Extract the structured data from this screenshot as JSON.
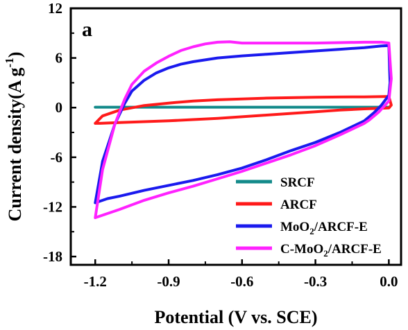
{
  "chart_data": {
    "type": "line",
    "panel_label": "a",
    "xlabel": "Potential (V vs. SCE)",
    "ylabel_main": "Current density(A g",
    "ylabel_sup": "-1",
    "ylabel_close": ")",
    "xlim": [
      -1.3,
      0.05
    ],
    "ylim": [
      -19,
      12
    ],
    "xticks": [
      -1.2,
      -0.9,
      -0.6,
      -0.3,
      0.0
    ],
    "xtick_labels": [
      "-1.2",
      "-0.9",
      "-0.6",
      "-0.3",
      "0.0"
    ],
    "yticks": [
      12,
      6,
      0,
      -6,
      -12,
      -18
    ],
    "ytick_labels": [
      "12",
      "6",
      "0",
      "-6",
      "-12",
      "-18"
    ],
    "grid": false,
    "legend_position": "bottom-right",
    "series": [
      {
        "name": "SRCF",
        "color": "#138a8a",
        "x": [
          -1.2,
          -1.0,
          -0.8,
          -0.6,
          -0.4,
          -0.2,
          0.0
        ],
        "y": [
          0.05,
          0.05,
          0.05,
          0.05,
          0.05,
          0.05,
          0.05
        ]
      },
      {
        "name": "ARCF",
        "color": "#ff1a1a",
        "x": [
          -1.2,
          -1.17,
          -1.1,
          -1.0,
          -0.9,
          -0.8,
          -0.7,
          -0.6,
          -0.5,
          -0.4,
          -0.3,
          -0.2,
          -0.1,
          0.0,
          0.01,
          0.0,
          -0.1,
          -0.2,
          -0.3,
          -0.4,
          -0.5,
          -0.6,
          -0.7,
          -0.8,
          -0.9,
          -1.0,
          -1.1,
          -1.18,
          -1.2
        ],
        "y": [
          -1.9,
          -1.0,
          -0.3,
          0.25,
          0.55,
          0.8,
          0.95,
          1.05,
          1.15,
          1.2,
          1.25,
          1.28,
          1.3,
          1.35,
          0.3,
          -0.05,
          -0.15,
          -0.3,
          -0.5,
          -0.7,
          -0.9,
          -1.1,
          -1.3,
          -1.45,
          -1.6,
          -1.7,
          -1.8,
          -1.9,
          -1.9
        ]
      },
      {
        "name": "MoO₂/ARCF-E",
        "color": "#1a1aee",
        "x": [
          -1.2,
          -1.17,
          -1.12,
          -1.08,
          -1.05,
          -1.0,
          -0.95,
          -0.9,
          -0.85,
          -0.8,
          -0.7,
          -0.6,
          -0.5,
          -0.4,
          -0.3,
          -0.2,
          -0.1,
          -0.03,
          0.0,
          0.005,
          0.0,
          -0.03,
          -0.06,
          -0.1,
          -0.2,
          -0.3,
          -0.4,
          -0.5,
          -0.6,
          -0.7,
          -0.8,
          -0.9,
          -1.0,
          -1.1,
          -1.15,
          -1.2
        ],
        "y": [
          -11.5,
          -6.5,
          -2.0,
          0.5,
          2.0,
          3.3,
          4.2,
          4.8,
          5.25,
          5.55,
          6.0,
          6.25,
          6.45,
          6.65,
          6.85,
          7.05,
          7.25,
          7.45,
          7.5,
          3.0,
          1.5,
          0.3,
          -0.6,
          -1.6,
          -3.0,
          -4.2,
          -5.2,
          -6.3,
          -7.3,
          -8.1,
          -8.8,
          -9.4,
          -10.0,
          -10.7,
          -11.0,
          -11.5
        ]
      },
      {
        "name": "C-MoO₂/ARCF-E",
        "color": "#ff22ff",
        "x": [
          -1.2,
          -1.17,
          -1.12,
          -1.08,
          -1.05,
          -1.0,
          -0.95,
          -0.9,
          -0.85,
          -0.8,
          -0.75,
          -0.7,
          -0.65,
          -0.6,
          -0.5,
          -0.4,
          -0.3,
          -0.2,
          -0.1,
          -0.03,
          0.0,
          0.01,
          0.0,
          -0.04,
          -0.08,
          -0.1,
          -0.2,
          -0.3,
          -0.4,
          -0.5,
          -0.6,
          -0.7,
          -0.8,
          -0.9,
          -1.0,
          -1.1,
          -1.15,
          -1.2
        ],
        "y": [
          -13.3,
          -7.5,
          -2.0,
          1.0,
          2.8,
          4.4,
          5.4,
          6.2,
          6.9,
          7.35,
          7.7,
          7.9,
          7.95,
          7.8,
          7.8,
          7.8,
          7.8,
          7.85,
          7.9,
          7.9,
          7.8,
          3.5,
          0.8,
          -0.5,
          -1.5,
          -1.9,
          -3.3,
          -4.6,
          -5.7,
          -6.7,
          -7.7,
          -8.6,
          -9.5,
          -10.3,
          -11.2,
          -12.3,
          -12.8,
          -13.3
        ]
      }
    ]
  }
}
